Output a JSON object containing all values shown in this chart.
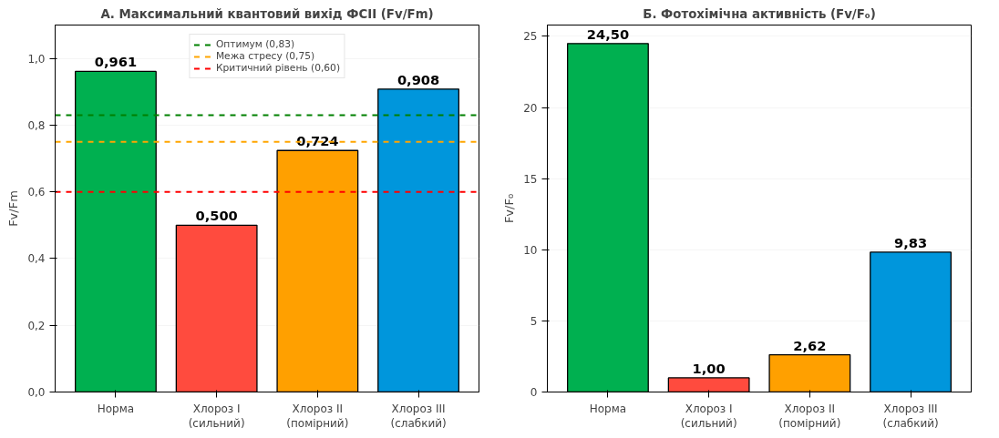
{
  "chart_data": [
    {
      "type": "bar",
      "title": "А. Максимальний квантовий вихід ФСII (Fv/Fm)",
      "ylabel": "Fv/Fm",
      "categories": [
        "Норма",
        "Хлороз I\n(сильний)",
        "Хлороз II\n(помірний)",
        "Хлороз III\n(слабкий)"
      ],
      "values": [
        0.961,
        0.5,
        0.724,
        0.908
      ],
      "colors": [
        "#00b050",
        "#ff4b3e",
        "#ffa000",
        "#0096dc"
      ],
      "value_labels": [
        "0,961",
        "0,500",
        "0,724",
        "0,908"
      ],
      "ylim": [
        0,
        1.1
      ],
      "yticks": [
        {
          "value": 0,
          "label": "0,0"
        },
        {
          "value": 0.2,
          "label": "0,2"
        },
        {
          "value": 0.4,
          "label": "0,4"
        },
        {
          "value": 0.6,
          "label": "0,6"
        },
        {
          "value": 0.8,
          "label": "0,8"
        },
        {
          "value": 1.0,
          "label": "1,0"
        }
      ],
      "ref_lines": [
        {
          "axis": "y",
          "value": 0.83,
          "label": "Оптимум (0,83)",
          "color": "#008000",
          "line_style": "dashed"
        },
        {
          "axis": "y",
          "value": 0.75,
          "label": "Межа стресу (0,75)",
          "color": "#ffa500",
          "line_style": "dashed"
        },
        {
          "axis": "y",
          "value": 0.6,
          "label": "Критичний рівень (0,60)",
          "color": "#ff0000",
          "line_style": "dashed"
        }
      ],
      "grid": "y",
      "legend": "top"
    },
    {
      "type": "bar",
      "title": "Б. Фотохімічна активність (Fv/F₀)",
      "ylabel": "Fv/F₀",
      "categories": [
        "Норма",
        "Хлороз I\n(сильний)",
        "Хлороз II\n(помірний)",
        "Хлороз III\n(слабкий)"
      ],
      "values": [
        24.5,
        1.0,
        2.62,
        9.83
      ],
      "colors": [
        "#00b050",
        "#ff4b3e",
        "#ffa000",
        "#0096dc"
      ],
      "value_labels": [
        "24,50",
        "1,00",
        "2,62",
        "9,83"
      ],
      "ylim": [
        0,
        25.8
      ],
      "yticks": [
        0,
        5,
        10,
        15,
        20,
        25
      ],
      "grid": "y"
    }
  ]
}
